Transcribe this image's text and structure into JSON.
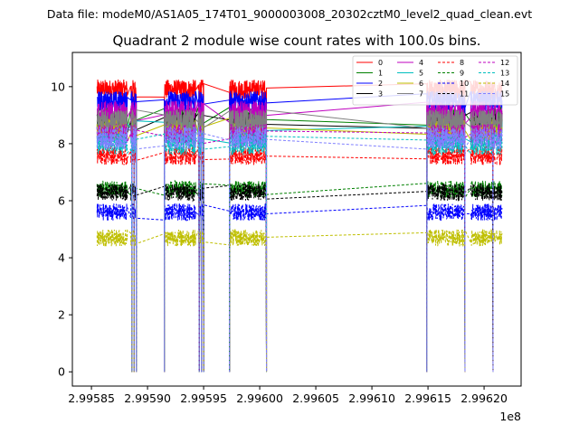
{
  "suptitle": "Data file: modeM0/AS1A05_174T01_9000003008_20302cztM0_level2_quad_clean.evt",
  "chart_data": {
    "type": "line",
    "title": "Quadrant 2 module wise count rates with 100.0s bins.",
    "xlabel": "",
    "ylabel": "",
    "x_offset_label": "1e8",
    "xlim": [
      2.995833,
      2.996233
    ],
    "ylim": [
      -0.5,
      11.2
    ],
    "x_ticks": [
      2.99585,
      2.9959,
      2.99595,
      2.996,
      2.99605,
      2.9961,
      2.99615,
      2.9962
    ],
    "x_tick_labels": [
      "2.99585",
      "2.99590",
      "2.99595",
      "2.99600",
      "2.99605",
      "2.99610",
      "2.99615",
      "2.99620"
    ],
    "y_ticks": [
      0,
      2,
      4,
      6,
      8,
      10
    ],
    "y_tick_labels": [
      "0",
      "2",
      "4",
      "6",
      "8",
      "10"
    ],
    "grid": false,
    "legend_position": "top-right",
    "legend_columns": 4,
    "time_segments": [
      {
        "start": 2.995855,
        "end": 2.995882
      },
      {
        "start": 2.995885,
        "end": 2.99589
      },
      {
        "start": 2.995915,
        "end": 2.995943
      },
      {
        "start": 2.995945,
        "end": 2.99595
      },
      {
        "start": 2.995973,
        "end": 2.996006
      },
      {
        "start": 2.996149,
        "end": 2.996183
      },
      {
        "start": 2.996188,
        "end": 2.99621
      },
      {
        "start": 2.996211,
        "end": 2.996216
      }
    ],
    "zero_intervals": [
      {
        "start": 2.995886,
        "end": 2.995888
      },
      {
        "start": 2.99589,
        "end": 2.995915
      },
      {
        "start": 2.995946,
        "end": 2.995948
      },
      {
        "start": 2.99595,
        "end": 2.995973
      },
      {
        "start": 2.996006,
        "end": 2.996149
      },
      {
        "start": 2.996183,
        "end": 2.996208
      }
    ],
    "series": [
      {
        "name": "0",
        "color": "#ff0000",
        "dashed": false,
        "mean": 9.9,
        "noise": 0.35
      },
      {
        "name": "1",
        "color": "#008000",
        "dashed": false,
        "mean": 8.9,
        "noise": 0.4
      },
      {
        "name": "2",
        "color": "#0000ff",
        "dashed": false,
        "mean": 9.5,
        "noise": 0.35
      },
      {
        "name": "3",
        "color": "#000000",
        "dashed": false,
        "mean": 8.7,
        "noise": 0.4
      },
      {
        "name": "4",
        "color": "#bf00bf",
        "dashed": false,
        "mean": 9.1,
        "noise": 0.4
      },
      {
        "name": "5",
        "color": "#00bfbf",
        "dashed": false,
        "mean": 8.4,
        "noise": 0.4
      },
      {
        "name": "6",
        "color": "#bfbf00",
        "dashed": false,
        "mean": 8.5,
        "noise": 0.4
      },
      {
        "name": "7",
        "color": "#808080",
        "dashed": false,
        "mean": 8.8,
        "noise": 0.4
      },
      {
        "name": "8",
        "color": "#ff0000",
        "dashed": true,
        "mean": 7.6,
        "noise": 0.35
      },
      {
        "name": "9",
        "color": "#008000",
        "dashed": true,
        "mean": 6.4,
        "noise": 0.3
      },
      {
        "name": "10",
        "color": "#0000ff",
        "dashed": true,
        "mean": 5.6,
        "noise": 0.3
      },
      {
        "name": "11",
        "color": "#000000",
        "dashed": true,
        "mean": 6.3,
        "noise": 0.3
      },
      {
        "name": "12",
        "color": "#bf00bf",
        "dashed": true,
        "mean": 8.3,
        "noise": 0.4
      },
      {
        "name": "13",
        "color": "#00bfbf",
        "dashed": true,
        "mean": 8.0,
        "noise": 0.4
      },
      {
        "name": "14",
        "color": "#bfbf00",
        "dashed": true,
        "mean": 4.7,
        "noise": 0.3
      },
      {
        "name": "15",
        "color": "#8080ff",
        "dashed": true,
        "mean": 8.2,
        "noise": 0.4
      }
    ]
  }
}
